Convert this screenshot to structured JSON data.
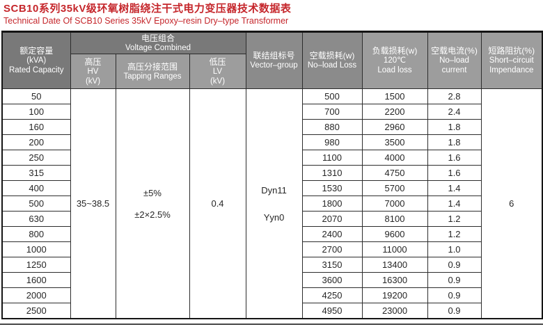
{
  "title": {
    "zh": "SCB10系列35kV级环氧树脂绕注干式电力变压器技术数据表",
    "en": "Technical Date Of SCB10 Series 35kV Epoxy–resin Dry–type Transformer"
  },
  "colors": {
    "title_red": "#c5262b",
    "header_dark": "#797979",
    "header_mid": "#8b8b8b",
    "header_light": "#9d9d9d",
    "row_gray": "#e7e7e7",
    "row_gray2": "#e3e3e3"
  },
  "table": {
    "headers": {
      "rated": {
        "zh": "额定容量",
        "unit": "(kVA)",
        "en": "Rated Capacity"
      },
      "voltage_combined": {
        "zh": "电压组合",
        "en": "Voltage Combined"
      },
      "hv": {
        "zh": "高压",
        "en": "HV",
        "unit": "(kV)"
      },
      "tapping": {
        "zh": "高压分接范围",
        "en": "Tapping Ranges"
      },
      "lv": {
        "zh": "低压",
        "en": "LV",
        "unit": "(kV)"
      },
      "vector": {
        "zh": "联结组标号",
        "en": "Vector–group"
      },
      "noload_loss": {
        "zh": "空载损耗(w)",
        "en": "No–load Loss"
      },
      "load_loss": {
        "zh": "负载损耗(w)",
        "temp": "120℃",
        "en": "Load loss"
      },
      "noload_current": {
        "zh": "空载电流(%)",
        "en1": "No–load",
        "en2": "current"
      },
      "impedance": {
        "zh": "短路阻抗(%)",
        "en1": "Short–circuit",
        "en2": "Impendance"
      }
    },
    "merged": {
      "hv": "35~38.5",
      "tapping_line1": "±5%",
      "tapping_line2": "±2×2.5%",
      "lv": "0.4",
      "vector_line1": "Dyn11",
      "vector_line2": "Yyn0",
      "impedance": "6"
    },
    "rows": [
      {
        "kva": "50",
        "noload": "500",
        "load": "1500",
        "current": "2.8"
      },
      {
        "kva": "100",
        "noload": "700",
        "load": "2200",
        "current": "2.4"
      },
      {
        "kva": "160",
        "noload": "880",
        "load": "2960",
        "current": "1.8"
      },
      {
        "kva": "200",
        "noload": "980",
        "load": "3500",
        "current": "1.8"
      },
      {
        "kva": "250",
        "noload": "1100",
        "load": "4000",
        "current": "1.6"
      },
      {
        "kva": "315",
        "noload": "1310",
        "load": "4750",
        "current": "1.6"
      },
      {
        "kva": "400",
        "noload": "1530",
        "load": "5700",
        "current": "1.4"
      },
      {
        "kva": "500",
        "noload": "1800",
        "load": "7000",
        "current": "1.4"
      },
      {
        "kva": "630",
        "noload": "2070",
        "load": "8100",
        "current": "1.2"
      },
      {
        "kva": "800",
        "noload": "2400",
        "load": "9600",
        "current": "1.2"
      },
      {
        "kva": "1000",
        "noload": "2700",
        "load": "11000",
        "current": "1.0"
      },
      {
        "kva": "1250",
        "noload": "3150",
        "load": "13400",
        "current": "0.9"
      },
      {
        "kva": "1600",
        "noload": "3600",
        "load": "16300",
        "current": "0.9"
      },
      {
        "kva": "2000",
        "noload": "4250",
        "load": "19200",
        "current": "0.9"
      },
      {
        "kva": "2500",
        "noload": "4950",
        "load": "23000",
        "current": "0.9"
      }
    ]
  }
}
